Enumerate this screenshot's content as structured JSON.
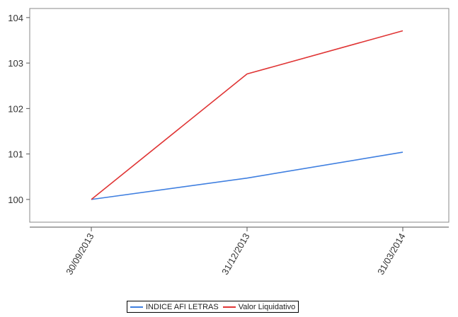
{
  "chart_data": {
    "type": "line",
    "title": "",
    "xlabel": "",
    "ylabel": "",
    "categories": [
      "30/09/2013",
      "31/12/2013",
      "31/03/2014"
    ],
    "ylim": [
      99.5,
      104.2
    ],
    "yticks": [
      100,
      101,
      102,
      103,
      104
    ],
    "grid": false,
    "legend_position": "bottom",
    "series": [
      {
        "name": "INDICE AFI LETRAS",
        "color": "#3f7fe0",
        "values": [
          100.0,
          100.47,
          101.04
        ]
      },
      {
        "name": "Valor Liquidativo",
        "color": "#e03535",
        "values": [
          100.0,
          102.76,
          103.71
        ]
      }
    ]
  }
}
